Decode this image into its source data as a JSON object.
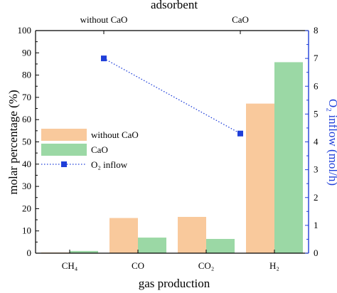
{
  "chart_data": {
    "type": "bar",
    "top_axis_title": "adsorbent",
    "top_categories": [
      "without CaO",
      "CaO"
    ],
    "xlabel": "gas production",
    "ylabel": "molar percentage (%)",
    "ylabel_right": "O₂ inflow (mol/h)",
    "ylim": [
      0,
      100
    ],
    "ylim_right": [
      0,
      8
    ],
    "yticks": [
      "0",
      "10",
      "20",
      "30",
      "40",
      "50",
      "60",
      "70",
      "80",
      "90",
      "100"
    ],
    "yticks_right": [
      "0",
      "1",
      "2",
      "3",
      "4",
      "5",
      "6",
      "7",
      "8"
    ],
    "categories": [
      "CH₄",
      "CO",
      "CO₂",
      "H₂"
    ],
    "series": [
      {
        "name": "without CaO",
        "axis": "left",
        "kind": "bar",
        "color": "#f9c99c",
        "values": [
          0.3,
          15.8,
          16.3,
          67.2
        ]
      },
      {
        "name": "CaO",
        "axis": "left",
        "kind": "bar",
        "color": "#9bd8a5",
        "values": [
          1.0,
          7.0,
          6.4,
          85.8
        ]
      },
      {
        "name": "O₂ inflow",
        "axis": "right",
        "kind": "line",
        "style": "dotted",
        "marker": "square",
        "color": "#1f3fd9",
        "points": [
          {
            "x": "without CaO",
            "y": 7.0
          },
          {
            "x": "CaO",
            "y": 4.3
          }
        ]
      }
    ],
    "legend_position": "middle-left",
    "grid": false
  }
}
